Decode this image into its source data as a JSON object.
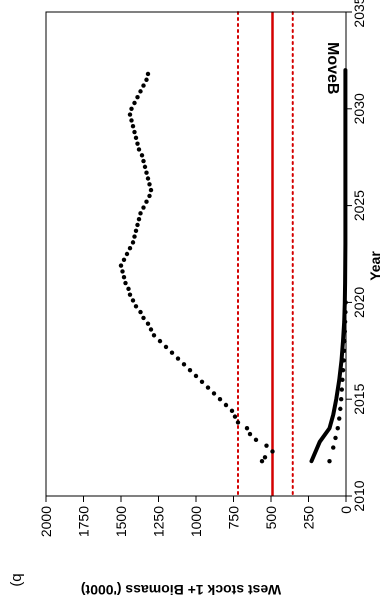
{
  "chart_data": {
    "type": "line",
    "panel_tag": "b)",
    "panel_label": "MoveB",
    "xlabel": "Year",
    "ylabel": "West stock 1+ Biomass ('000t)",
    "xlim": [
      2010,
      2035
    ],
    "ylim": [
      0,
      2000
    ],
    "x_ticks": [
      "2010",
      "2015",
      "2020",
      "2025",
      "2030",
      "2035"
    ],
    "y_ticks": [
      "0",
      "250",
      "500",
      "750",
      "1000",
      "1250",
      "1500",
      "1750",
      "2000"
    ],
    "orientation": "rotated 90° clockwise",
    "reference_lines": [
      {
        "value": 490,
        "style": "solid",
        "color": "#d40000"
      },
      {
        "value": 355,
        "style": "dotted",
        "color": "#d40000"
      },
      {
        "value": 720,
        "style": "dotted",
        "color": "#d40000"
      }
    ],
    "series": [
      {
        "style": "dotted",
        "color": "#000000",
        "x": [
          2011.8,
          2012,
          2012.3,
          2012.6,
          2012.9,
          2013.2,
          2013.5,
          2013.8,
          2014.1,
          2014.4,
          2014.7,
          2015,
          2015.3,
          2015.6,
          2015.9,
          2016.2,
          2016.5,
          2016.8,
          2017.1,
          2017.4,
          2017.7,
          2018,
          2018.3,
          2018.6,
          2018.9,
          2019.2,
          2019.5,
          2019.8,
          2020.1,
          2020.4,
          2020.7,
          2021,
          2021.3,
          2021.6,
          2021.9,
          2022.2,
          2022.5,
          2022.8,
          2023.1,
          2023.4,
          2023.7,
          2024,
          2024.3,
          2024.6,
          2024.9,
          2025.2,
          2025.5,
          2025.8,
          2026.1,
          2026.4,
          2026.7,
          2027,
          2027.3,
          2027.6,
          2027.9,
          2028.2,
          2028.5,
          2028.8,
          2029.1,
          2029.4,
          2029.7,
          2030,
          2030.3,
          2030.6,
          2030.9,
          2031.2,
          2031.5,
          2031.8
        ],
        "y": [
          560,
          540,
          490,
          530,
          600,
          640,
          660,
          720,
          740,
          760,
          800,
          840,
          880,
          920,
          960,
          1000,
          1040,
          1080,
          1120,
          1160,
          1200,
          1240,
          1280,
          1300,
          1320,
          1350,
          1370,
          1400,
          1420,
          1440,
          1450,
          1470,
          1480,
          1490,
          1500,
          1480,
          1460,
          1440,
          1420,
          1410,
          1400,
          1390,
          1380,
          1370,
          1350,
          1330,
          1310,
          1300,
          1310,
          1320,
          1330,
          1340,
          1350,
          1360,
          1380,
          1390,
          1400,
          1410,
          1420,
          1430,
          1440,
          1430,
          1410,
          1390,
          1370,
          1350,
          1330,
          1320
        ]
      },
      {
        "style": "solid",
        "color": "#000000",
        "x": [
          2011.8,
          2012.8,
          2013.5,
          2014.2,
          2015,
          2016,
          2017,
          2018,
          2019,
          2020,
          2021,
          2022,
          2023,
          2024,
          2025,
          2026,
          2027,
          2028,
          2029,
          2030,
          2031,
          2032
        ],
        "y": [
          230,
          175,
          110,
          85,
          65,
          45,
          30,
          20,
          12,
          8,
          6,
          5,
          4,
          4,
          4,
          4,
          4,
          4,
          4,
          4,
          4,
          4
        ]
      },
      {
        "style": "dotted",
        "color": "#000000",
        "x": [
          2011.8,
          2012.5,
          2013,
          2013.5,
          2014,
          2014.5,
          2015,
          2015.5,
          2016,
          2016.5,
          2017,
          2017.5,
          2018,
          2018.5,
          2019,
          2019.5,
          2020
        ],
        "y": [
          110,
          85,
          70,
          55,
          45,
          38,
          32,
          28,
          24,
          20,
          16,
          13,
          10,
          8,
          6,
          4,
          2
        ]
      }
    ]
  }
}
